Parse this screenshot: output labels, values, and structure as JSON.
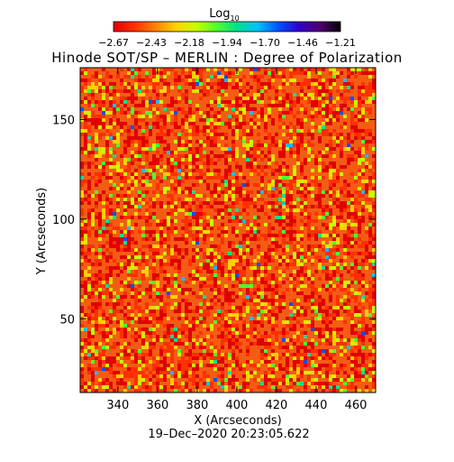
{
  "chart_data": {
    "type": "heatmap",
    "title": "Hinode SOT/SP – MERLIN : Degree of Polarization",
    "xlabel": "X (Arcseconds)",
    "ylabel": "Y (Arcseconds)",
    "timestamp": "19–Dec–2020 20:23:05.622",
    "xlim": [
      321,
      470
    ],
    "ylim": [
      13,
      176
    ],
    "x_ticks": [
      340,
      360,
      380,
      400,
      420,
      440,
      460
    ],
    "x_tick_labels": [
      "340",
      "360",
      "380",
      "400",
      "420",
      "440",
      "460"
    ],
    "y_ticks": [
      50,
      100,
      150
    ],
    "y_tick_labels": [
      "50",
      "100",
      "150"
    ],
    "colorbar": {
      "label_base": "Log",
      "label_sub": "10",
      "range": [
        -2.67,
        -1.21
      ],
      "tick_labels": [
        "−2.67",
        "−2.43",
        "−2.18",
        "−1.94",
        "−1.70",
        "−1.46",
        "−1.21"
      ],
      "colors": [
        "#e00000",
        "#ff3000",
        "#ff8000",
        "#ffd000",
        "#c8ff00",
        "#50ff30",
        "#00e090",
        "#00c0ff",
        "#0050ff",
        "#3000c8",
        "#500070",
        "#000000"
      ]
    },
    "grid": false,
    "legend": "none"
  }
}
